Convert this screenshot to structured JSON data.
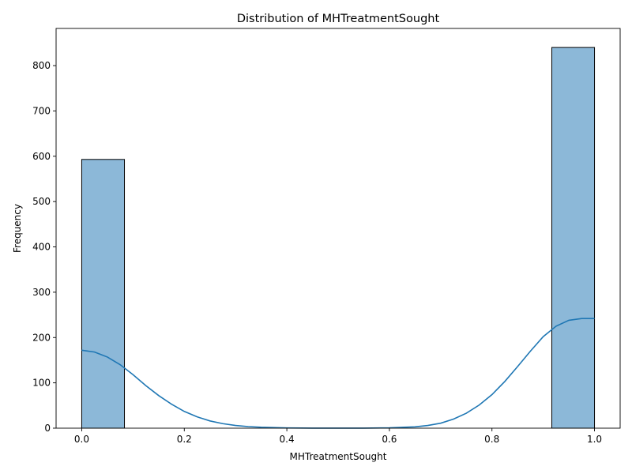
{
  "chart_data": {
    "type": "bar",
    "title": "Distribution of MHTreatmentSought",
    "xlabel": "MHTreatmentSought",
    "ylabel": "Frequency",
    "xlim": [
      -0.05,
      1.05
    ],
    "ylim": [
      0,
      882
    ],
    "x_ticks": [
      0.0,
      0.2,
      0.4,
      0.6,
      0.8,
      1.0
    ],
    "x_tick_labels": [
      "0.0",
      "0.2",
      "0.4",
      "0.6",
      "0.8",
      "1.0"
    ],
    "y_ticks": [
      0,
      100,
      200,
      300,
      400,
      500,
      600,
      700,
      800
    ],
    "y_tick_labels": [
      "0",
      "100",
      "200",
      "300",
      "400",
      "500",
      "600",
      "700",
      "800"
    ],
    "bins": [
      {
        "x0": 0.0,
        "x1": 0.0833,
        "count": 593
      },
      {
        "x0": 0.9167,
        "x1": 1.0,
        "count": 840
      }
    ],
    "kde": {
      "x": [
        0.0,
        0.025,
        0.05,
        0.075,
        0.1,
        0.125,
        0.15,
        0.175,
        0.2,
        0.225,
        0.25,
        0.275,
        0.3,
        0.325,
        0.35,
        0.4,
        0.45,
        0.5,
        0.55,
        0.6,
        0.65,
        0.675,
        0.7,
        0.725,
        0.75,
        0.775,
        0.8,
        0.825,
        0.85,
        0.875,
        0.9,
        0.925,
        0.95,
        0.975,
        1.0
      ],
      "y": [
        172,
        168,
        157,
        140,
        118,
        94,
        72,
        53,
        37,
        25,
        16,
        10,
        6,
        3.5,
        2,
        0.5,
        0.1,
        0.05,
        0.1,
        0.8,
        3,
        6,
        11,
        20,
        33,
        51,
        74,
        103,
        136,
        170,
        202,
        225,
        238,
        242,
        242
      ]
    },
    "colors": {
      "bar_fill": "#8cb8d8",
      "bar_edge": "#000000",
      "kde_line": "#1f77b4"
    }
  }
}
